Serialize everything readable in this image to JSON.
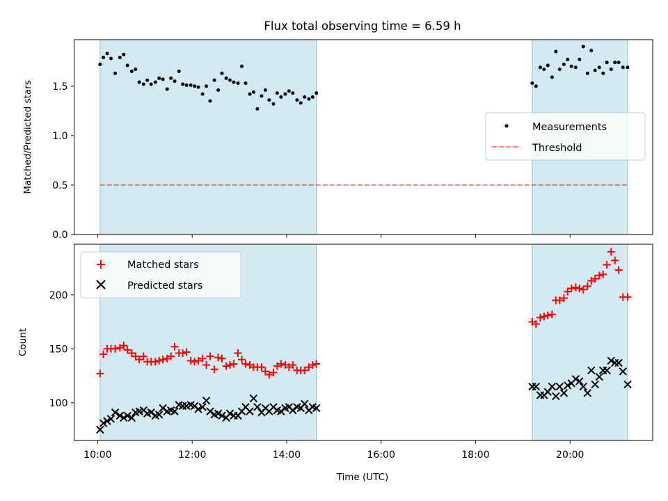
{
  "title": "Flux total observing time = 6.59 h",
  "xlabel": "Time (UTC)",
  "x_tick_labels": [
    "10:00",
    "12:00",
    "14:00",
    "16:00",
    "18:00",
    "20:00"
  ],
  "colors": {
    "span": "#add8e6",
    "measurements": "#000000",
    "threshold": "#ff0000",
    "matched": "#ff0000",
    "predicted": "#000000"
  },
  "chart_data": [
    {
      "type": "scatter",
      "panel": "top",
      "ylabel": "Matched/Predicted stars",
      "x_unit": "hours UTC",
      "xlim": [
        9.5,
        21.75
      ],
      "ylim": [
        0,
        1.97
      ],
      "y_ticks": [
        0.0,
        0.5,
        1.0,
        1.5
      ],
      "y_tick_labels": [
        "0.0",
        "0.5",
        "1.0",
        "1.5"
      ],
      "observing_spans": [
        [
          10.05,
          14.63
        ],
        [
          19.2,
          21.22
        ]
      ],
      "legend_position": "center-right",
      "threshold": {
        "name": "Threshold",
        "value": 0.5,
        "x_range": [
          10.05,
          21.22
        ]
      },
      "series": [
        {
          "name": "Measurements",
          "x": [
            10.05,
            10.12,
            10.2,
            10.28,
            10.37,
            10.47,
            10.55,
            10.63,
            10.72,
            10.8,
            10.88,
            10.97,
            11.05,
            11.13,
            11.22,
            11.3,
            11.38,
            11.47,
            11.55,
            11.63,
            11.72,
            11.8,
            11.88,
            11.97,
            12.05,
            12.13,
            12.22,
            12.3,
            12.38,
            12.47,
            12.55,
            12.63,
            12.72,
            12.8,
            12.88,
            12.97,
            13.05,
            13.13,
            13.22,
            13.3,
            13.38,
            13.47,
            13.55,
            13.63,
            13.72,
            13.8,
            13.88,
            13.97,
            14.05,
            14.13,
            14.22,
            14.3,
            14.38,
            14.47,
            14.55,
            14.63,
            19.2,
            19.28,
            19.37,
            19.45,
            19.53,
            19.62,
            19.7,
            19.78,
            19.87,
            19.95,
            20.03,
            20.12,
            20.2,
            20.28,
            20.37,
            20.45,
            20.53,
            20.62,
            20.7,
            20.78,
            20.87,
            20.95,
            21.03,
            21.12,
            21.22
          ],
          "y": [
            1.72,
            1.79,
            1.83,
            1.78,
            1.63,
            1.79,
            1.82,
            1.71,
            1.65,
            1.67,
            1.54,
            1.52,
            1.56,
            1.52,
            1.54,
            1.58,
            1.57,
            1.47,
            1.58,
            1.55,
            1.65,
            1.52,
            1.51,
            1.51,
            1.5,
            1.49,
            1.42,
            1.5,
            1.35,
            1.56,
            1.46,
            1.63,
            1.58,
            1.56,
            1.54,
            1.53,
            1.7,
            1.53,
            1.42,
            1.44,
            1.27,
            1.4,
            1.46,
            1.36,
            1.32,
            1.43,
            1.39,
            1.42,
            1.45,
            1.43,
            1.36,
            1.33,
            1.39,
            1.37,
            1.39,
            1.43,
            1.53,
            1.5,
            1.69,
            1.67,
            1.71,
            1.59,
            1.85,
            1.67,
            1.72,
            1.77,
            1.7,
            1.69,
            1.77,
            1.9,
            1.63,
            1.86,
            1.66,
            1.69,
            1.63,
            1.74,
            1.67,
            1.74,
            1.74,
            1.69,
            1.69
          ]
        }
      ]
    },
    {
      "type": "scatter",
      "panel": "bottom",
      "ylabel": "Count",
      "x_unit": "hours UTC",
      "xlim": [
        9.5,
        21.75
      ],
      "ylim": [
        65,
        247
      ],
      "y_ticks": [
        100,
        150,
        200
      ],
      "y_tick_labels": [
        "100",
        "150",
        "200"
      ],
      "observing_spans": [
        [
          10.05,
          14.63
        ],
        [
          19.2,
          21.22
        ]
      ],
      "legend_position": "upper-left",
      "series": [
        {
          "name": "Matched stars",
          "marker": "+",
          "x": [
            10.05,
            10.12,
            10.2,
            10.28,
            10.37,
            10.47,
            10.55,
            10.63,
            10.72,
            10.8,
            10.88,
            10.97,
            11.05,
            11.13,
            11.22,
            11.3,
            11.38,
            11.47,
            11.55,
            11.63,
            11.72,
            11.8,
            11.88,
            11.97,
            12.05,
            12.13,
            12.22,
            12.3,
            12.38,
            12.47,
            12.55,
            12.63,
            12.72,
            12.8,
            12.88,
            12.97,
            13.05,
            13.13,
            13.22,
            13.3,
            13.38,
            13.47,
            13.55,
            13.63,
            13.72,
            13.8,
            13.88,
            13.97,
            14.05,
            14.13,
            14.22,
            14.3,
            14.38,
            14.47,
            14.55,
            14.63,
            19.2,
            19.28,
            19.37,
            19.45,
            19.53,
            19.62,
            19.7,
            19.78,
            19.87,
            19.95,
            20.03,
            20.12,
            20.2,
            20.28,
            20.37,
            20.45,
            20.53,
            20.62,
            20.7,
            20.78,
            20.87,
            20.95,
            21.03,
            21.12,
            21.22
          ],
          "y": [
            127,
            145,
            150,
            150,
            150,
            151,
            153,
            149,
            146,
            143,
            140,
            143,
            138,
            138,
            138,
            139,
            140,
            141,
            143,
            152,
            146,
            146,
            147,
            139,
            138,
            139,
            141,
            135,
            143,
            131,
            142,
            141,
            134,
            135,
            136,
            146,
            140,
            136,
            135,
            133,
            133,
            133,
            129,
            126,
            128,
            134,
            136,
            135,
            133,
            135,
            130,
            130,
            130,
            133,
            135,
            136,
            175,
            173,
            179,
            180,
            181,
            182,
            195,
            195,
            197,
            203,
            206,
            207,
            206,
            205,
            208,
            213,
            215,
            218,
            219,
            228,
            240,
            232,
            223,
            198,
            198
          ]
        },
        {
          "name": "Predicted stars",
          "marker": "x",
          "x": [
            10.05,
            10.12,
            10.2,
            10.28,
            10.37,
            10.47,
            10.55,
            10.63,
            10.72,
            10.8,
            10.88,
            10.97,
            11.05,
            11.13,
            11.22,
            11.3,
            11.38,
            11.47,
            11.55,
            11.63,
            11.72,
            11.8,
            11.88,
            11.97,
            12.05,
            12.13,
            12.22,
            12.3,
            12.38,
            12.47,
            12.55,
            12.63,
            12.72,
            12.8,
            12.88,
            12.97,
            13.05,
            13.13,
            13.22,
            13.3,
            13.38,
            13.47,
            13.55,
            13.63,
            13.72,
            13.8,
            13.88,
            13.97,
            14.05,
            14.13,
            14.22,
            14.3,
            14.38,
            14.47,
            14.55,
            14.63,
            19.2,
            19.28,
            19.37,
            19.45,
            19.53,
            19.62,
            19.7,
            19.78,
            19.87,
            19.95,
            20.03,
            20.12,
            20.2,
            20.28,
            20.37,
            20.45,
            20.53,
            20.62,
            20.7,
            20.78,
            20.87,
            20.95,
            21.03,
            21.12,
            21.22
          ],
          "y": [
            75,
            81,
            83,
            85,
            91,
            88,
            86,
            88,
            86,
            91,
            92,
            93,
            90,
            91,
            88,
            89,
            95,
            92,
            93,
            92,
            98,
            97,
            97,
            98,
            97,
            94,
            96,
            102,
            92,
            89,
            90,
            88,
            86,
            90,
            88,
            88,
            92,
            96,
            92,
            104,
            96,
            91,
            95,
            92,
            96,
            93,
            92,
            95,
            96,
            93,
            96,
            95,
            99,
            93,
            96,
            95,
            115,
            115,
            107,
            107,
            110,
            115,
            106,
            115,
            109,
            116,
            118,
            122,
            120,
            115,
            109,
            130,
            117,
            124,
            130,
            130,
            139,
            137,
            137,
            129,
            117
          ]
        }
      ]
    }
  ]
}
